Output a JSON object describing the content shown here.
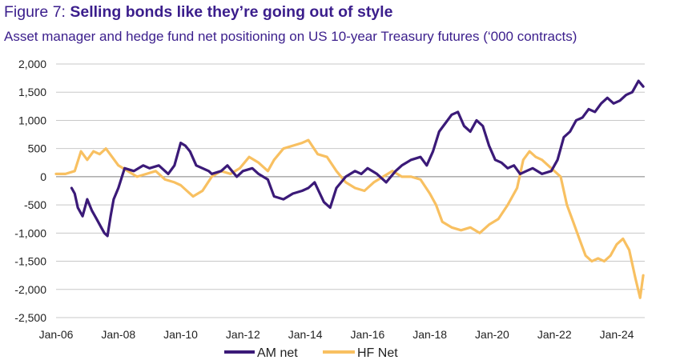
{
  "figure": {
    "label": "Figure 7:",
    "headline": "Selling bonds like they’re going out of style",
    "subtitle": "Asset manager and hedge fund net positioning on US 10-year Treasury futures (‘000 contracts)"
  },
  "chart_data": {
    "type": "line",
    "title": "Figure 7: Selling bonds like they’re going out of style",
    "subtitle": "Asset manager and hedge fund net positioning on US 10-year Treasury futures (‘000 contracts)",
    "xlabel": "",
    "ylabel": "",
    "ylim": [
      -2500,
      2000
    ],
    "yticks": [
      2000,
      1500,
      1000,
      500,
      0,
      -500,
      -1000,
      -1500,
      -2000,
      -2500
    ],
    "ytick_labels": [
      "2,000",
      "1,500",
      "1,000",
      "500",
      "0",
      "-500",
      "-1,000",
      "-1,500",
      "-2,000",
      "-2,500"
    ],
    "xlim": [
      2006.0,
      2024.9
    ],
    "xticks": [
      2006,
      2008,
      2010,
      2012,
      2014,
      2016,
      2018,
      2020,
      2022,
      2024
    ],
    "xtick_labels": [
      "Jan-06",
      "Jan-08",
      "Jan-10",
      "Jan-12",
      "Jan-14",
      "Jan-16",
      "Jan-18",
      "Jan-20",
      "Jan-22",
      "Jan-24"
    ],
    "grid": true,
    "legend_position": "bottom",
    "series": [
      {
        "name": "AM net",
        "color": "#3b1a78",
        "x": [
          2006.5,
          2006.6,
          2006.7,
          2006.85,
          2007.0,
          2007.15,
          2007.3,
          2007.45,
          2007.55,
          2007.65,
          2007.75,
          2007.85,
          2008.0,
          2008.2,
          2008.5,
          2008.8,
          2009.0,
          2009.3,
          2009.6,
          2009.8,
          2010.0,
          2010.15,
          2010.3,
          2010.5,
          2010.7,
          2010.9,
          2011.0,
          2011.3,
          2011.5,
          2011.8,
          2012.0,
          2012.3,
          2012.5,
          2012.8,
          2013.0,
          2013.3,
          2013.6,
          2013.9,
          2014.1,
          2014.3,
          2014.6,
          2014.8,
          2015.0,
          2015.3,
          2015.6,
          2015.8,
          2016.0,
          2016.3,
          2016.6,
          2016.9,
          2017.1,
          2017.4,
          2017.7,
          2017.9,
          2018.1,
          2018.3,
          2018.5,
          2018.7,
          2018.9,
          2019.1,
          2019.3,
          2019.5,
          2019.7,
          2019.9,
          2020.1,
          2020.3,
          2020.5,
          2020.7,
          2020.9,
          2021.1,
          2021.3,
          2021.6,
          2021.9,
          2022.1,
          2022.3,
          2022.5,
          2022.7,
          2022.9,
          2023.1,
          2023.3,
          2023.5,
          2023.7,
          2023.9,
          2024.1,
          2024.3,
          2024.5,
          2024.7,
          2024.85
        ],
        "values": [
          -200,
          -300,
          -550,
          -700,
          -400,
          -600,
          -750,
          -900,
          -1000,
          -1050,
          -700,
          -400,
          -200,
          150,
          100,
          200,
          150,
          200,
          50,
          200,
          600,
          550,
          450,
          200,
          150,
          100,
          50,
          100,
          200,
          0,
          100,
          150,
          50,
          -50,
          -350,
          -400,
          -300,
          -250,
          -200,
          -100,
          -450,
          -550,
          -200,
          0,
          100,
          50,
          150,
          50,
          -100,
          100,
          200,
          300,
          350,
          200,
          450,
          800,
          950,
          1100,
          1150,
          900,
          800,
          1000,
          900,
          550,
          300,
          250,
          150,
          200,
          50,
          100,
          150,
          50,
          100,
          300,
          700,
          800,
          1000,
          1050,
          1200,
          1150,
          1300,
          1400,
          1300,
          1350,
          1450,
          1500,
          1700,
          1600
        ]
      },
      {
        "name": "HF Net",
        "color": "#f8c061",
        "x": [
          2006.0,
          2006.3,
          2006.6,
          2006.8,
          2007.0,
          2007.2,
          2007.4,
          2007.6,
          2007.8,
          2008.0,
          2008.3,
          2008.6,
          2008.9,
          2009.2,
          2009.5,
          2009.8,
          2010.0,
          2010.2,
          2010.4,
          2010.7,
          2011.0,
          2011.3,
          2011.6,
          2011.9,
          2012.2,
          2012.5,
          2012.8,
          2013.0,
          2013.3,
          2013.6,
          2013.9,
          2014.1,
          2014.4,
          2014.7,
          2015.0,
          2015.3,
          2015.6,
          2015.9,
          2016.2,
          2016.5,
          2016.8,
          2017.1,
          2017.4,
          2017.7,
          2018.0,
          2018.2,
          2018.4,
          2018.7,
          2019.0,
          2019.3,
          2019.6,
          2019.9,
          2020.2,
          2020.5,
          2020.8,
          2021.0,
          2021.2,
          2021.4,
          2021.6,
          2021.8,
          2022.0,
          2022.2,
          2022.4,
          2022.6,
          2022.8,
          2023.0,
          2023.2,
          2023.4,
          2023.6,
          2023.8,
          2024.0,
          2024.2,
          2024.4,
          2024.6,
          2024.75,
          2024.85
        ],
        "values": [
          50,
          50,
          100,
          450,
          300,
          450,
          400,
          500,
          350,
          200,
          100,
          0,
          50,
          100,
          -50,
          -100,
          -150,
          -250,
          -350,
          -250,
          0,
          100,
          50,
          150,
          350,
          250,
          100,
          300,
          500,
          550,
          600,
          650,
          400,
          350,
          100,
          -100,
          -200,
          -250,
          -100,
          0,
          100,
          0,
          0,
          -50,
          -300,
          -500,
          -800,
          -900,
          -950,
          -900,
          -1000,
          -850,
          -750,
          -500,
          -200,
          300,
          450,
          350,
          300,
          200,
          100,
          0,
          -500,
          -800,
          -1100,
          -1400,
          -1500,
          -1450,
          -1500,
          -1400,
          -1200,
          -1100,
          -1300,
          -1800,
          -2150,
          -1750
        ]
      }
    ]
  }
}
